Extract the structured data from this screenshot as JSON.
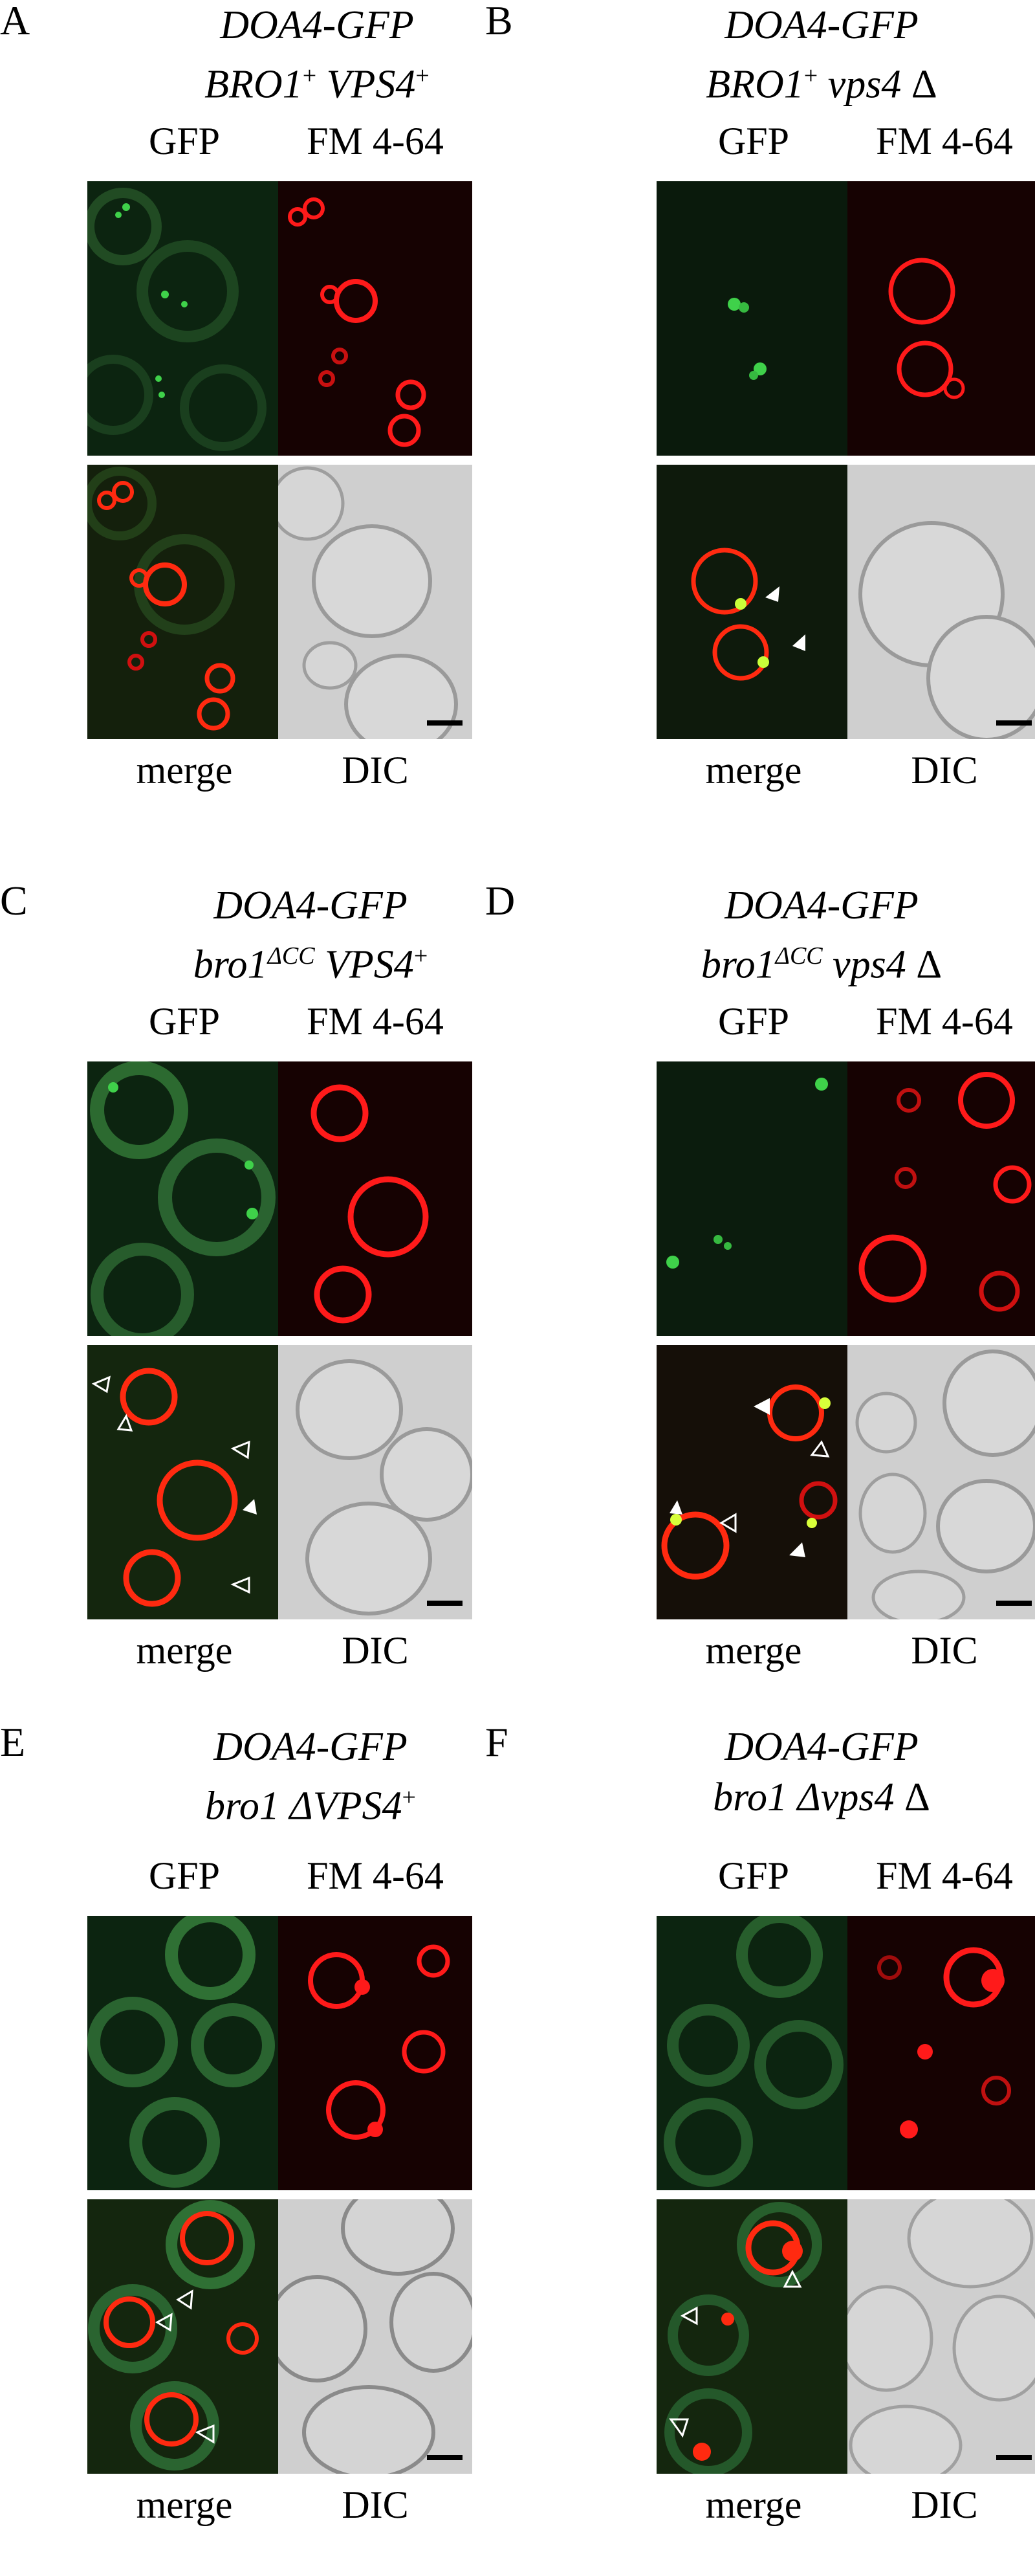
{
  "figure": {
    "image_labels": {
      "gfp": "GFP",
      "fm": "FM 4-64",
      "merge": "merge",
      "dic": "DIC"
    },
    "panels": [
      {
        "letter": "A",
        "line1": "DOA4-GFP",
        "line2_a": "BRO1",
        "line2_a_sup": "+",
        "line2_b": " VPS4",
        "line2_b_sup": "+"
      },
      {
        "letter": "B",
        "line1": "DOA4-GFP",
        "line2_a": "BRO1",
        "line2_a_sup": "+",
        "line2_b": " vps4",
        "line2_b_sup": "",
        "line2_c": " Δ"
      },
      {
        "letter": "C",
        "line1": "DOA4-GFP",
        "line2_a": "bro1",
        "line2_a_sup": "ΔCC",
        "line2_b": " VPS4",
        "line2_b_sup": "+"
      },
      {
        "letter": "D",
        "line1": "DOA4-GFP",
        "line2_a": "bro1",
        "line2_a_sup": "ΔCC",
        "line2_b": " vps4",
        "line2_b_sup": "",
        "line2_c": " Δ"
      },
      {
        "letter": "E",
        "line1": "DOA4-GFP",
        "line2_a": "bro1",
        "line2_a_sup": "",
        "line2_b": " ΔVPS4",
        "line2_b_sup": "+"
      },
      {
        "letter": "F",
        "line1": "DOA4-GFP",
        "line2_a": "bro1",
        "line2_a_sup": "",
        "line2_b": " Δvps4",
        "line2_b_sup": "",
        "line2_c": " Δ"
      }
    ],
    "colors": {
      "gfp_bg": "#0c2410",
      "gfp_signal": "#3fd14a",
      "fm_bg": "#160202",
      "fm_signal": "#ff1a1a",
      "merge_bg": "#14200c",
      "dic_bg": "#cfcfcf",
      "scale_bar": "#000000"
    }
  }
}
